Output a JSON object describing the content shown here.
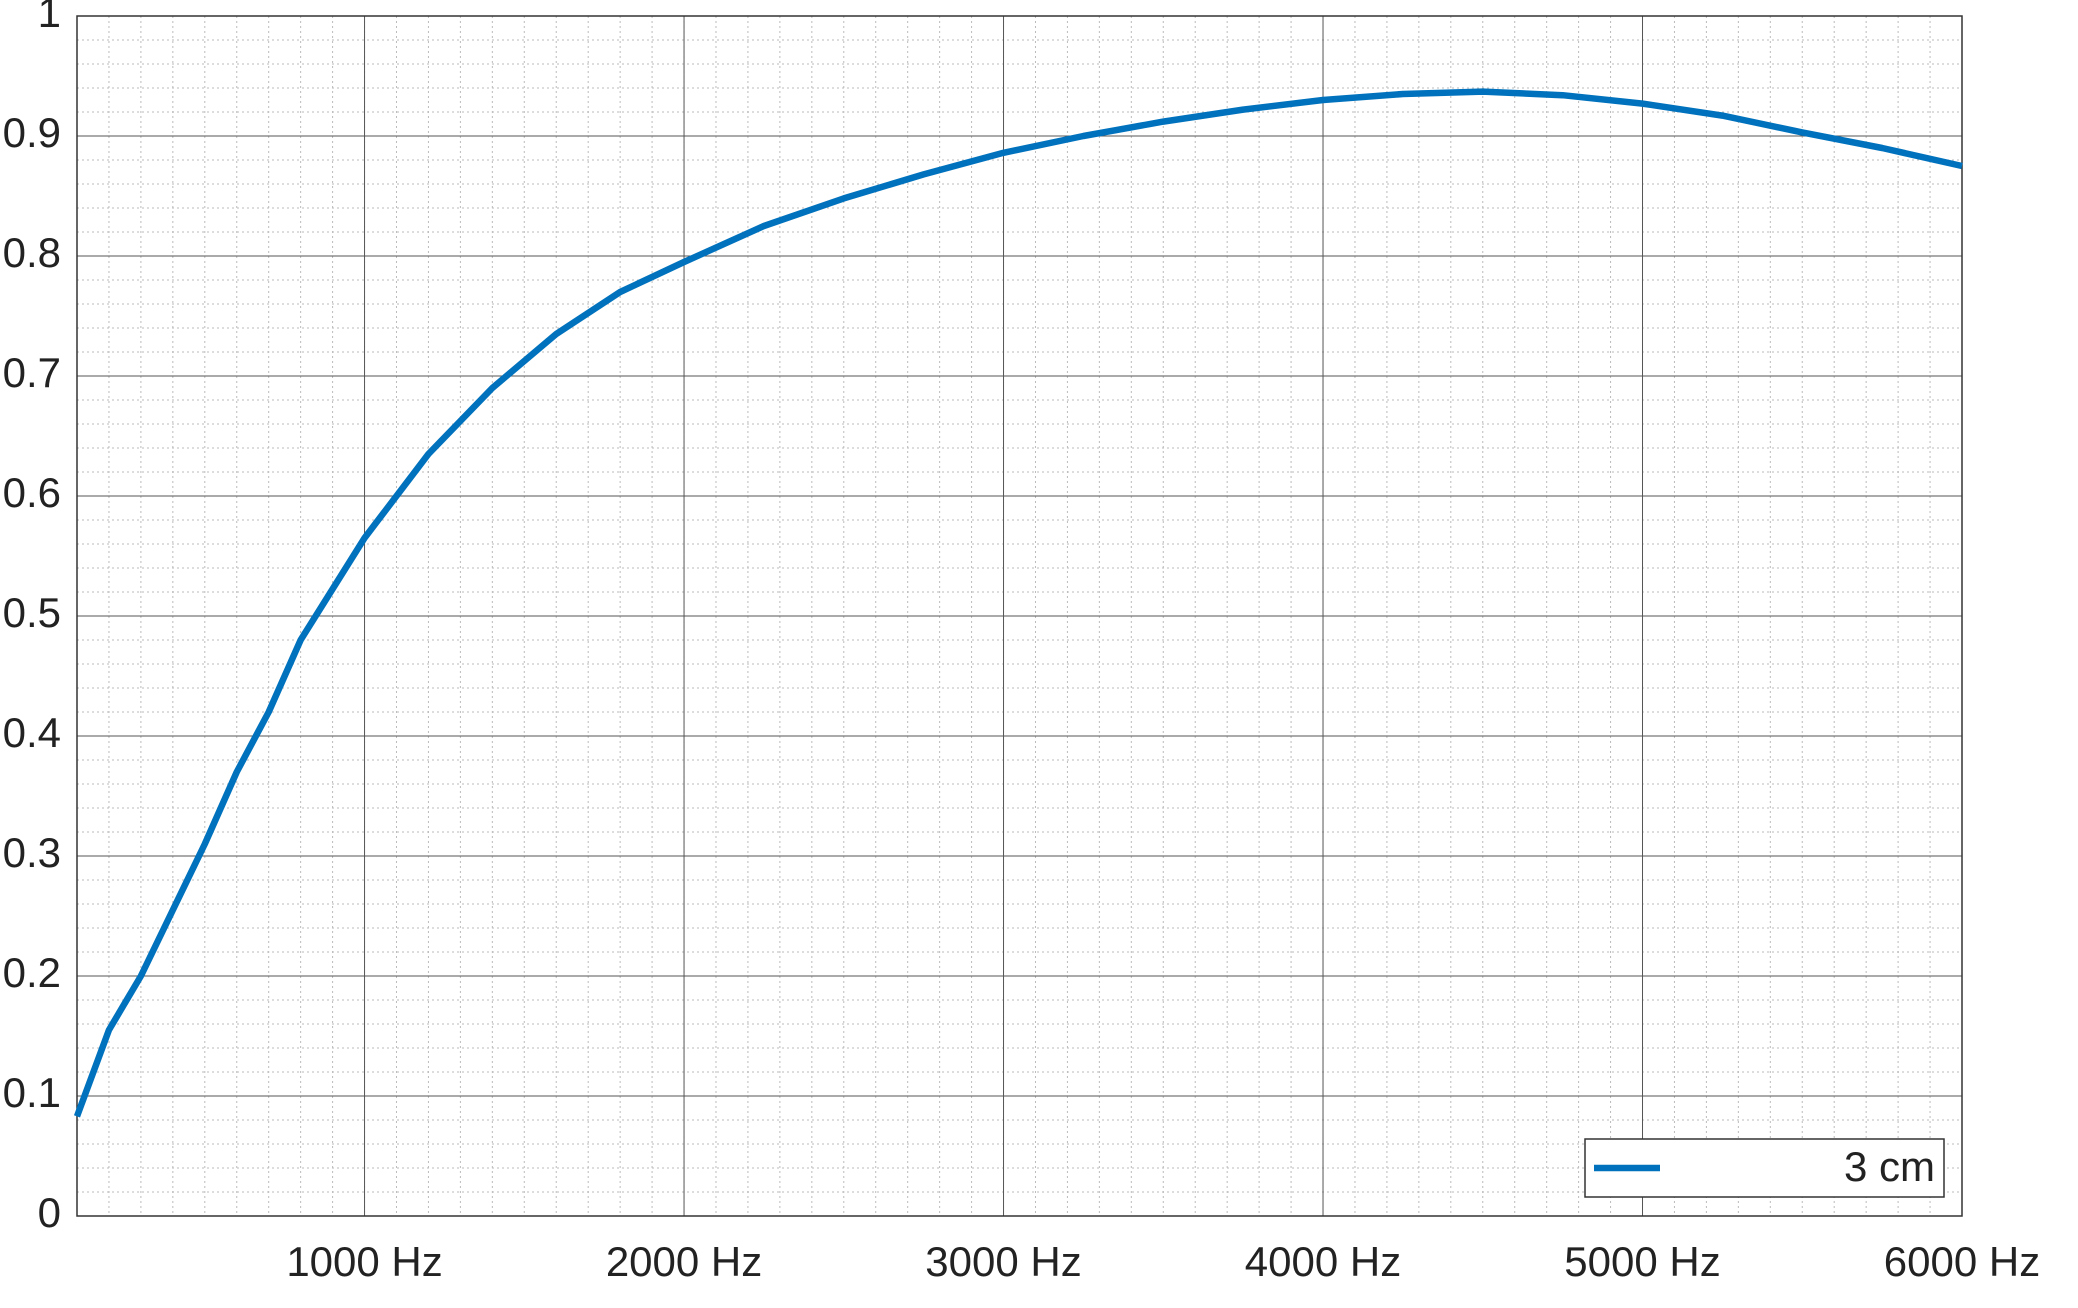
{
  "chart_data": {
    "type": "line",
    "x": [
      100,
      200,
      300,
      500,
      600,
      700,
      800,
      1000,
      1200,
      1400,
      1600,
      1800,
      2000,
      2250,
      2500,
      2750,
      3000,
      3250,
      3500,
      3750,
      4000,
      4250,
      4500,
      4750,
      5000,
      5250,
      5500,
      5750,
      6000
    ],
    "series": [
      {
        "name": "3 cm",
        "color": "#0072bd",
        "values": [
          0.083,
          0.155,
          0.2,
          0.31,
          0.37,
          0.42,
          0.48,
          0.565,
          0.635,
          0.69,
          0.735,
          0.77,
          0.795,
          0.825,
          0.848,
          0.868,
          0.886,
          0.9,
          0.912,
          0.922,
          0.93,
          0.935,
          0.937,
          0.934,
          0.927,
          0.917,
          0.903,
          0.89,
          0.875
        ]
      }
    ],
    "xlim": [
      100,
      6000
    ],
    "xticks": [
      {
        "value": 1000,
        "label": "1000 Hz"
      },
      {
        "value": 2000,
        "label": "2000 Hz"
      },
      {
        "value": 3000,
        "label": "3000 Hz"
      },
      {
        "value": 4000,
        "label": "4000 Hz"
      },
      {
        "value": 5000,
        "label": "5000 Hz"
      },
      {
        "value": 6000,
        "label": "6000 Hz"
      }
    ],
    "ylim": [
      0,
      1
    ],
    "yticks": [
      0,
      0.1,
      0.2,
      0.3,
      0.4,
      0.5,
      0.6,
      0.7,
      0.8,
      0.9,
      1
    ],
    "grid": true,
    "minor_grid": true,
    "legend": "lower right"
  }
}
